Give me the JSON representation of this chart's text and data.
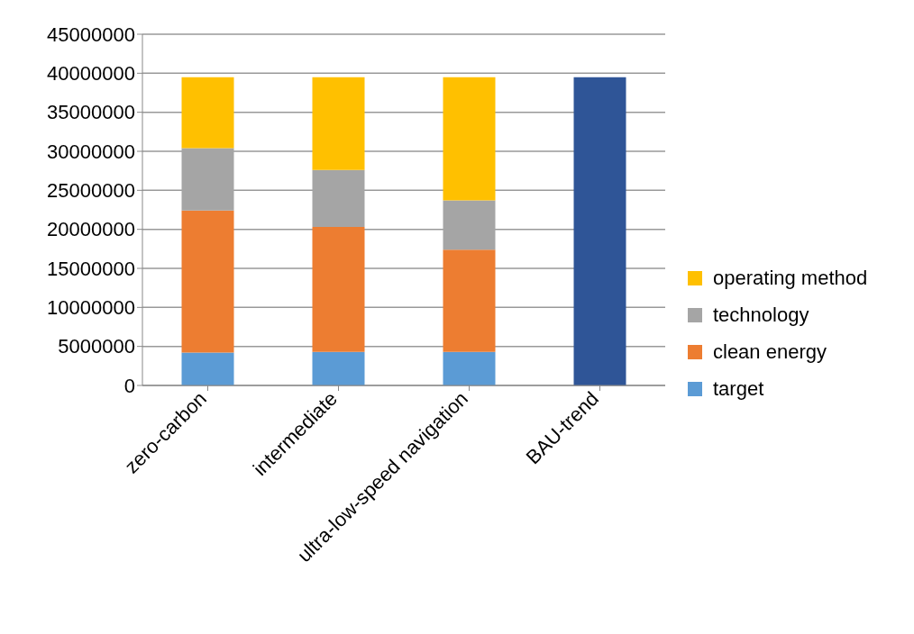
{
  "chart_data": {
    "type": "bar",
    "stacked": true,
    "categories": [
      "zero-carbon",
      "intermediate",
      "ultra-low-speed navigation",
      "BAU-trend"
    ],
    "series": [
      {
        "name": "target",
        "color": "#5b9bd5",
        "values": [
          4200000,
          4300000,
          4300000,
          null
        ]
      },
      {
        "name": "clean energy",
        "color": "#ed7d31",
        "values": [
          18200000,
          16000000,
          13100000,
          null
        ]
      },
      {
        "name": "technology",
        "color": "#a5a5a5",
        "values": [
          8000000,
          7300000,
          6300000,
          null
        ]
      },
      {
        "name": "operating method",
        "color": "#ffc000",
        "values": [
          9100000,
          11900000,
          15800000,
          null
        ]
      },
      {
        "color": "#2f5597",
        "values": [
          null,
          null,
          null,
          39500000
        ]
      }
    ],
    "ylim": [
      0,
      45000000
    ],
    "yticks": [
      0,
      5000000,
      10000000,
      15000000,
      20000000,
      25000000,
      30000000,
      35000000,
      40000000,
      45000000
    ],
    "grid": "y",
    "legend": "right"
  }
}
